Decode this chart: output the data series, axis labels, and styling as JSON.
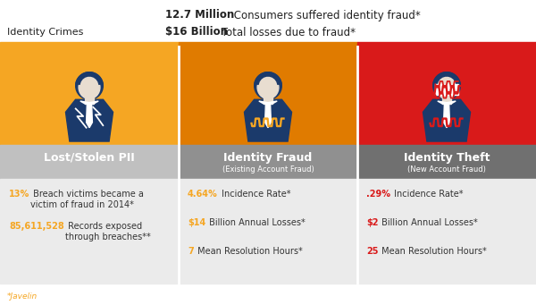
{
  "title_bold": "12.7 Million",
  "title_rest": " Consumers suffered identity fraud*",
  "subtitle_bold": "$16 Billion",
  "subtitle_rest": " Total losses due to fraud*",
  "top_label": "Identity Crimes",
  "footer": "*Javelin",
  "col1_bg": "#F5A623",
  "col2_bg": "#E07B00",
  "col3_bg": "#D91A1A",
  "label1_bg": "#C0C0C0",
  "label2_bg": "#909090",
  "label3_bg": "#707070",
  "label1": "Lost/Stolen PII",
  "label2": "Identity Fraud",
  "label2_sub": "(Existing Account Fraud)",
  "label3": "Identity Theft",
  "label3_sub": "(New Account Fraud)",
  "stats_bg": "#EBEBEB",
  "col1_stat1_bold": "13%",
  "col1_stat1_rest": " Breach victims became a\nvictim of fraud in 2014*",
  "col1_stat2_bold": "85,611,528",
  "col1_stat2_rest": " Records exposed\nthrough breaches**",
  "col2_stat1_bold": "4.64%",
  "col2_stat1_rest": " Incidence Rate*",
  "col2_stat2_bold": "$14",
  "col2_stat2_rest": " Billion Annual Losses*",
  "col2_stat3_bold": "7",
  "col2_stat3_rest": " Mean Resolution Hours*",
  "col3_stat1_bold": ".29%",
  "col3_stat1_rest": " Incidence Rate*",
  "col3_stat2_bold": "$2",
  "col3_stat2_rest": " Billion Annual Losses*",
  "col3_stat3_bold": "25",
  "col3_stat3_rest": " Mean Resolution Hours*",
  "orange_color": "#F5A623",
  "red_color": "#D91A1A",
  "dark_text": "#222222",
  "white": "#FFFFFF",
  "navy": "#1B3A6B",
  "skin": "#E8DDD0",
  "figure_bg": "#FFFFFF"
}
